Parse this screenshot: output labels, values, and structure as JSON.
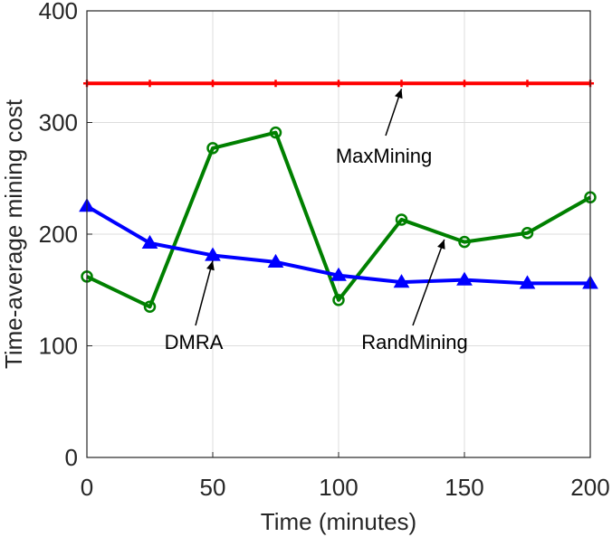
{
  "chart_data": {
    "type": "line",
    "xlabel": "Time (minutes)",
    "ylabel": "Time-average mining cost",
    "xlim": [
      0,
      200
    ],
    "ylim": [
      0,
      400
    ],
    "xticks": [
      0,
      50,
      100,
      150,
      200
    ],
    "yticks": [
      0,
      100,
      200,
      300,
      400
    ],
    "grid": true,
    "x": [
      0,
      25,
      50,
      75,
      100,
      125,
      150,
      175,
      200
    ],
    "series": [
      {
        "name": "MaxMining",
        "color": "#ff0000",
        "marker": "plus",
        "values": [
          335,
          335,
          335,
          335,
          335,
          335,
          335,
          335,
          335
        ]
      },
      {
        "name": "RandMining",
        "color": "#008000",
        "marker": "circle",
        "values": [
          162,
          135,
          277,
          291,
          141,
          213,
          193,
          201,
          233
        ]
      },
      {
        "name": "DMRA",
        "color": "#0000ff",
        "marker": "triangle",
        "values": [
          225,
          192,
          181,
          175,
          163,
          157,
          159,
          156,
          156
        ]
      }
    ],
    "annotations": [
      {
        "text": "MaxMining",
        "target_x": 125,
        "target_y": 335
      },
      {
        "text": "RandMining",
        "target_x": 142,
        "target_y": 200
      },
      {
        "text": "DMRA",
        "target_x": 50,
        "target_y": 181
      }
    ]
  }
}
